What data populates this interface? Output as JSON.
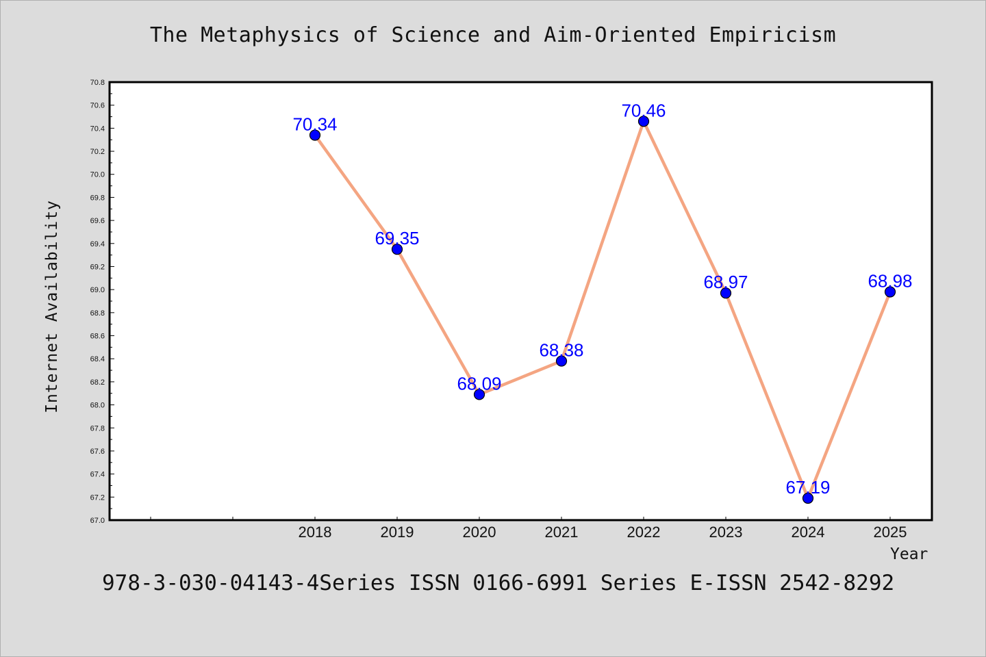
{
  "chart_data": {
    "type": "line",
    "title": "The Metaphysics of Science and Aim-Oriented Empiricism",
    "xlabel": "Year",
    "ylabel": "Internet Availability",
    "categories": [
      "2018",
      "2019",
      "2020",
      "2021",
      "2022",
      "2023",
      "2024",
      "2025"
    ],
    "series": [
      {
        "values": [
          70.34,
          69.35,
          68.09,
          68.38,
          70.46,
          68.97,
          67.19,
          68.98
        ],
        "labels": [
          "70.34",
          "69.35",
          "68.09",
          "68.38",
          "70.46",
          "68.97",
          "67.19",
          "68.98"
        ]
      }
    ],
    "ylim": [
      67.0,
      70.8
    ],
    "yticks": [
      "67.0",
      "67.2",
      "67.4",
      "67.6",
      "67.8",
      "68.0",
      "68.2",
      "68.4",
      "68.6",
      "68.8",
      "69.0",
      "69.2",
      "69.4",
      "69.6",
      "69.8",
      "70.0",
      "70.2",
      "70.4",
      "70.6",
      "70.8"
    ],
    "grid": false,
    "line_color": "#f4a582",
    "marker_color": "#0000ff",
    "label_color": "#0000ff",
    "background_color": "#dcdcdc",
    "plot_background_color": "#ffffff"
  },
  "footer": {
    "text": "978-3-030-04143-4Series ISSN 0166-6991 Series E-ISSN 2542-8292"
  }
}
